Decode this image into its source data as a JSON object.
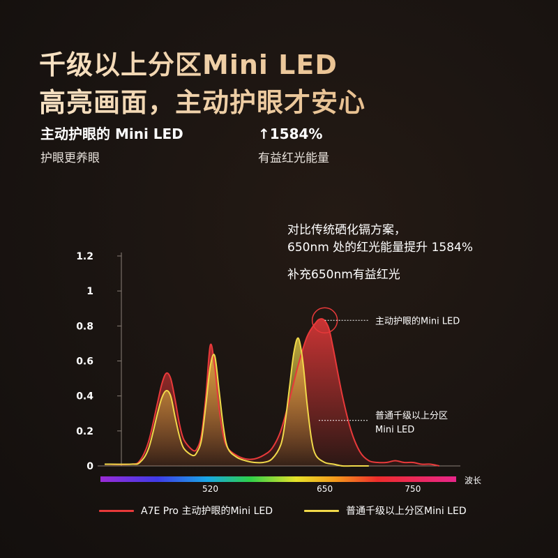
{
  "headline": {
    "line1": "千级以上分区Mini LED",
    "line2": "高亮画面，主动护眼才安心"
  },
  "stats": [
    {
      "title": "主动护眼的 Mini LED",
      "subtitle": "护眼更养眼"
    },
    {
      "title": "↑1584%",
      "subtitle": "有益红光能量"
    }
  ],
  "note": {
    "line1": "对比传统硒化镉方案，",
    "line2": "650nm 处的红光能量提升 1584%",
    "line3": "补充650nm有益红光"
  },
  "colors": {
    "red": "#e8393a",
    "yellow": "#f1d94a",
    "headline": "#f3d6b0"
  },
  "chart_data": {
    "type": "line",
    "title": "",
    "xlabel": "波长",
    "ylabel": "",
    "ylim": [
      0,
      1.2
    ],
    "xlim": [
      400,
      800
    ],
    "y_ticks": [
      "0",
      "0.2",
      "0.4",
      "0.6",
      "0.8",
      "1",
      "1.2"
    ],
    "x_ticks": [
      "520",
      "650",
      "750"
    ],
    "x_tick_values": [
      520,
      650,
      750
    ],
    "series": [
      {
        "name": "A7E Pro 主动护眼的Mini LED",
        "color": "#e8393a",
        "x": [
          400,
          430,
          440,
          450,
          460,
          465,
          470,
          475,
          480,
          485,
          490,
          500,
          505,
          510,
          515,
          520,
          525,
          530,
          535,
          540,
          550,
          560,
          570,
          580,
          590,
          600,
          610,
          620,
          630,
          640,
          645,
          650,
          655,
          660,
          670,
          680,
          690,
          700,
          710,
          720,
          730,
          740,
          750,
          760,
          770,
          780
        ],
        "y": [
          0.01,
          0.01,
          0.03,
          0.14,
          0.36,
          0.47,
          0.53,
          0.5,
          0.38,
          0.24,
          0.15,
          0.09,
          0.1,
          0.18,
          0.4,
          0.69,
          0.57,
          0.33,
          0.17,
          0.1,
          0.06,
          0.04,
          0.04,
          0.06,
          0.1,
          0.2,
          0.38,
          0.58,
          0.74,
          0.82,
          0.84,
          0.83,
          0.78,
          0.66,
          0.4,
          0.2,
          0.08,
          0.03,
          0.02,
          0.02,
          0.03,
          0.02,
          0.02,
          0.01,
          0.01,
          0.0
        ]
      },
      {
        "name": "普通千级以上分区Mini LED",
        "color": "#f1d94a",
        "x": [
          400,
          430,
          440,
          450,
          460,
          465,
          470,
          475,
          480,
          485,
          490,
          500,
          505,
          510,
          515,
          520,
          525,
          530,
          535,
          540,
          550,
          560,
          570,
          580,
          590,
          600,
          605,
          610,
          615,
          620,
          625,
          630,
          635,
          640,
          650,
          660,
          670,
          680,
          690,
          700
        ],
        "y": [
          0.01,
          0.01,
          0.02,
          0.1,
          0.3,
          0.39,
          0.43,
          0.4,
          0.28,
          0.17,
          0.1,
          0.06,
          0.08,
          0.15,
          0.35,
          0.57,
          0.63,
          0.43,
          0.22,
          0.1,
          0.05,
          0.03,
          0.02,
          0.02,
          0.04,
          0.12,
          0.25,
          0.45,
          0.65,
          0.73,
          0.6,
          0.35,
          0.15,
          0.06,
          0.02,
          0.01,
          0.0,
          0.0,
          0.0,
          0.0
        ]
      }
    ],
    "annotations": [
      {
        "label": "主动护眼的Mini LED",
        "series": 0,
        "x": 650,
        "y": 0.84
      },
      {
        "label_line1": "普通千级以上分区",
        "label_line2": "Mini LED",
        "series": 0,
        "x": 640,
        "y": 0.26
      }
    ],
    "legend_position": "bottom"
  }
}
